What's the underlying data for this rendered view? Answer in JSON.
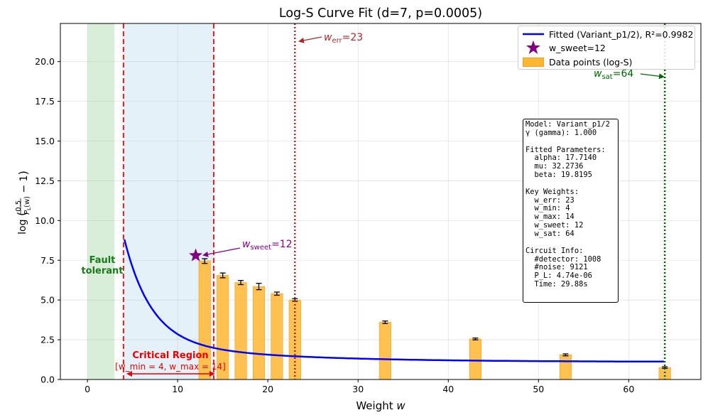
{
  "chart_data": {
    "type": "bar+line",
    "title": "Log-S Curve Fit (d=7, p=0.0005)",
    "xlabel": "Weight w",
    "ylabel": "log(0.5/P_L(w) − 1)",
    "xlim": [
      -3,
      68
    ],
    "ylim": [
      0,
      22.4
    ],
    "x_ticks": [
      0,
      10,
      20,
      30,
      40,
      50,
      60
    ],
    "y_ticks": [
      0.0,
      2.5,
      5.0,
      7.5,
      10.0,
      12.5,
      15.0,
      17.5,
      20.0
    ],
    "grid": true,
    "series": [
      {
        "name": "Data points (log-S)",
        "kind": "bar",
        "color": "#ffb732",
        "x": [
          13,
          15,
          17,
          19,
          21,
          23,
          33,
          43,
          53,
          64
        ],
        "values": [
          7.45,
          6.55,
          6.1,
          5.85,
          5.4,
          5.0,
          3.6,
          2.55,
          1.55,
          0.75
        ],
        "errors": [
          0.15,
          0.15,
          0.13,
          0.2,
          0.1,
          0.08,
          0.08,
          0.06,
          0.06,
          0.05
        ]
      },
      {
        "name": "Fitted (Variant_p1/2), R²=0.9982",
        "kind": "line",
        "color": "#0000ff",
        "model": {
          "alpha": 17.714,
          "mu": 32.2736,
          "beta": 19.8195,
          "x_start": 4.1,
          "x_end": 64
        }
      }
    ],
    "legend": {
      "position": "top-right",
      "entries": [
        "Fitted (Variant_p1/2), R²=0.9982",
        "w_sweet=12",
        "Data points (log-S)"
      ]
    },
    "markers": {
      "sweet": {
        "x": 12,
        "y": 7.8,
        "color": "#800080",
        "label_base": "w",
        "label_sub": "sweet",
        "label_rest": "=12"
      }
    },
    "regions": {
      "fault_tolerant": {
        "x0": 0,
        "x1": 3,
        "color": "#2ca02c",
        "label_line1": "Fault",
        "label_line2": "tolerant"
      },
      "critical": {
        "x0": 4,
        "x1": 14,
        "color": "#87bfdf",
        "label": "Critical Region",
        "sublabel": "[w_min = 4, w_max = 14]"
      }
    },
    "vlines": [
      {
        "name": "w_min",
        "x": 4,
        "color": "#e62020",
        "style": "dashed"
      },
      {
        "name": "w_max",
        "x": 14,
        "color": "#e62020",
        "style": "dashed"
      },
      {
        "name": "w_err",
        "x": 23,
        "color": "#a52a2a",
        "style": "dotted",
        "label_base": "w",
        "label_sub": "err",
        "label_rest": "=23"
      },
      {
        "name": "w_sat",
        "x": 64,
        "color": "#006400",
        "style": "dotted",
        "label_base": "w",
        "label_sub": "sat",
        "label_rest": "=64"
      }
    ],
    "info_box": [
      "Model: Variant_p1/2",
      "γ (gamma): 1.000",
      "",
      "Fitted Parameters:",
      "  alpha: 17.7140",
      "  mu: 32.2736",
      "  beta: 19.8195",
      "",
      "Key Weights:",
      "  w_err: 23",
      "  w_min: 4",
      "  w_max: 14",
      "  w_sweet: 12",
      "  w_sat: 64",
      "",
      "Circuit Info:",
      "  #detector: 1008",
      "  #noise: 9121",
      "  P_L: 4.74e-06",
      "  Time: 29.88s"
    ]
  }
}
